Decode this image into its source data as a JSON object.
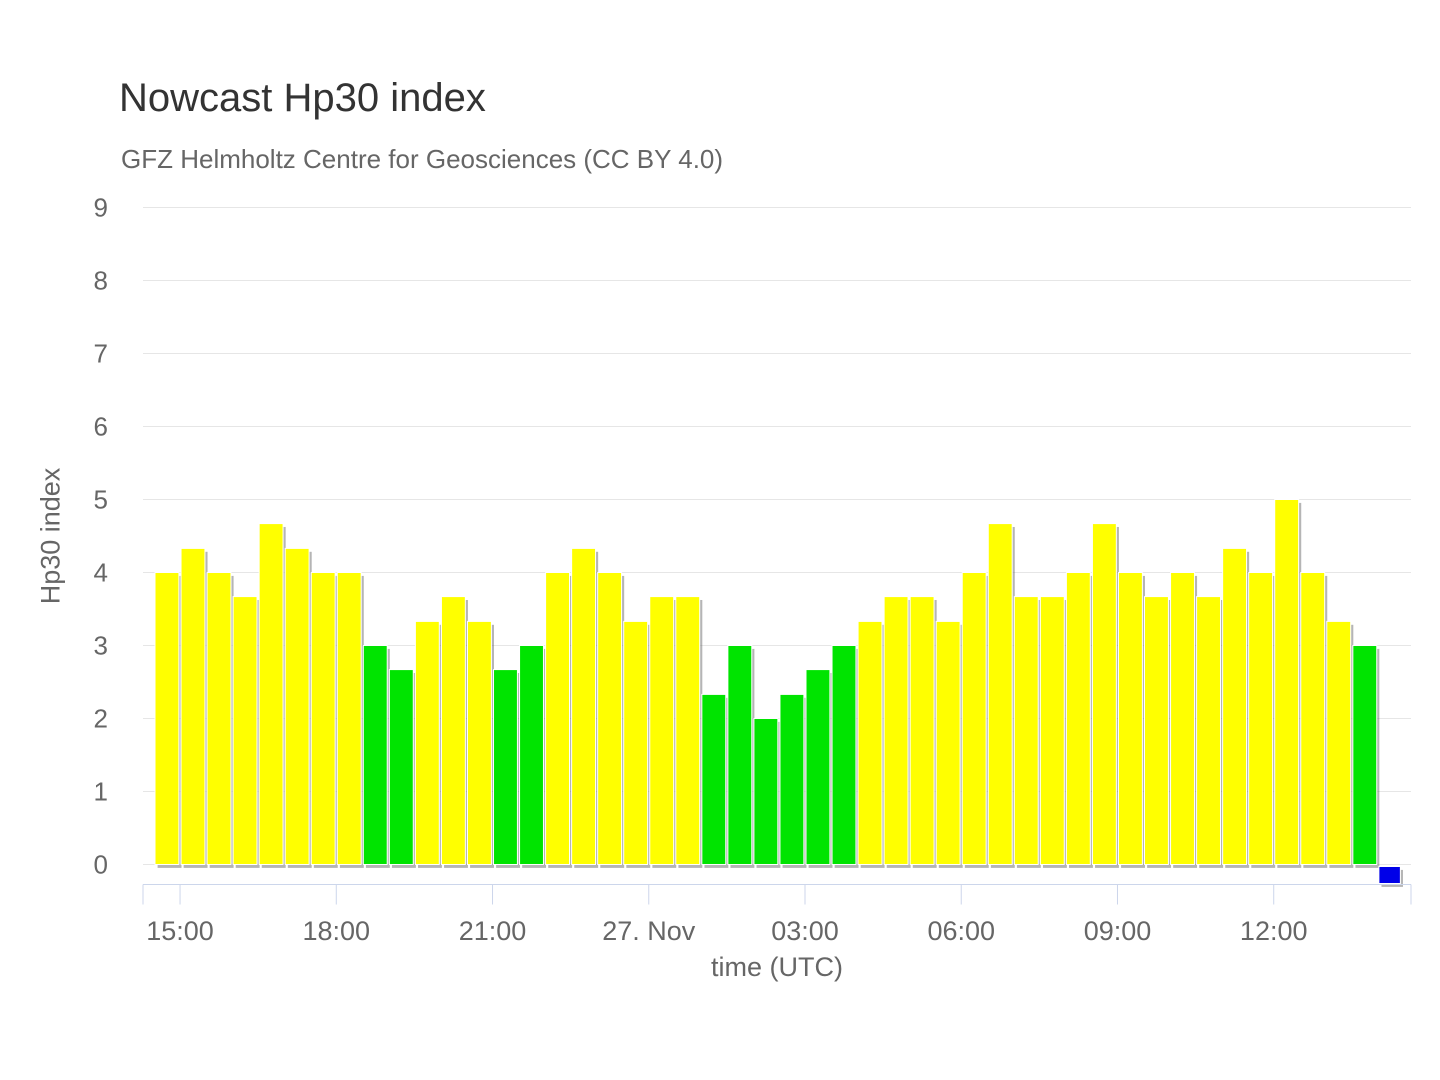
{
  "page": {
    "background": "#ffffff"
  },
  "chart_data": {
    "type": "bar",
    "title": "Nowcast Hp30 index",
    "subtitle": "GFZ Helmholtz Centre for Geosciences (CC BY 4.0)",
    "xlabel": "time (UTC)",
    "ylabel": "Hp30 index",
    "ylim": [
      0,
      9
    ],
    "y_ticks": [
      0,
      1,
      2,
      3,
      4,
      5,
      6,
      7,
      8,
      9
    ],
    "grid": true,
    "legend": false,
    "interval_minutes": 30,
    "x_ticks": [
      {
        "label": "15:00",
        "boundary_index": 1
      },
      {
        "label": "18:00",
        "boundary_index": 7
      },
      {
        "label": "21:00",
        "boundary_index": 13
      },
      {
        "label": "27. Nov",
        "boundary_index": 19
      },
      {
        "label": "03:00",
        "boundary_index": 25
      },
      {
        "label": "06:00",
        "boundary_index": 31
      },
      {
        "label": "09:00",
        "boundary_index": 37
      },
      {
        "label": "12:00",
        "boundary_index": 43
      }
    ],
    "colors": {
      "yellow": "#ffff00",
      "green": "#00e400",
      "pending_blue": "#0000e8"
    },
    "style_colors": {
      "title_text": "#333333",
      "label_text": "#666666",
      "gridline": "#e6e6e6",
      "axis_line": "#ccd6eb",
      "bar_border": "#ffffff",
      "bar_shadow": "rgba(90,90,90,0.45)"
    },
    "points": [
      {
        "time": "14:30",
        "value": 4.0,
        "color": "yellow"
      },
      {
        "time": "15:00",
        "value": 4.33,
        "color": "yellow"
      },
      {
        "time": "15:30",
        "value": 4.0,
        "color": "yellow"
      },
      {
        "time": "16:00",
        "value": 3.67,
        "color": "yellow"
      },
      {
        "time": "16:30",
        "value": 4.67,
        "color": "yellow"
      },
      {
        "time": "17:00",
        "value": 4.33,
        "color": "yellow"
      },
      {
        "time": "17:30",
        "value": 4.0,
        "color": "yellow"
      },
      {
        "time": "18:00",
        "value": 4.0,
        "color": "yellow"
      },
      {
        "time": "18:30",
        "value": 3.0,
        "color": "green"
      },
      {
        "time": "19:00",
        "value": 2.67,
        "color": "green"
      },
      {
        "time": "19:30",
        "value": 3.33,
        "color": "yellow"
      },
      {
        "time": "20:00",
        "value": 3.67,
        "color": "yellow"
      },
      {
        "time": "20:30",
        "value": 3.33,
        "color": "yellow"
      },
      {
        "time": "21:00",
        "value": 2.67,
        "color": "green"
      },
      {
        "time": "21:30",
        "value": 3.0,
        "color": "green"
      },
      {
        "time": "22:00",
        "value": 4.0,
        "color": "yellow"
      },
      {
        "time": "22:30",
        "value": 4.33,
        "color": "yellow"
      },
      {
        "time": "23:00",
        "value": 4.0,
        "color": "yellow"
      },
      {
        "time": "23:30",
        "value": 3.33,
        "color": "yellow"
      },
      {
        "time": "00:00",
        "value": 3.67,
        "color": "yellow"
      },
      {
        "time": "00:30",
        "value": 3.67,
        "color": "yellow"
      },
      {
        "time": "01:00",
        "value": 2.33,
        "color": "green"
      },
      {
        "time": "01:30",
        "value": 3.0,
        "color": "green"
      },
      {
        "time": "02:00",
        "value": 2.0,
        "color": "green"
      },
      {
        "time": "02:30",
        "value": 2.33,
        "color": "green"
      },
      {
        "time": "03:00",
        "value": 2.67,
        "color": "green"
      },
      {
        "time": "03:30",
        "value": 3.0,
        "color": "green"
      },
      {
        "time": "04:00",
        "value": 3.33,
        "color": "yellow"
      },
      {
        "time": "04:30",
        "value": 3.67,
        "color": "yellow"
      },
      {
        "time": "05:00",
        "value": 3.67,
        "color": "yellow"
      },
      {
        "time": "05:30",
        "value": 3.33,
        "color": "yellow"
      },
      {
        "time": "06:00",
        "value": 4.0,
        "color": "yellow"
      },
      {
        "time": "06:30",
        "value": 4.67,
        "color": "yellow"
      },
      {
        "time": "07:00",
        "value": 3.67,
        "color": "yellow"
      },
      {
        "time": "07:30",
        "value": 3.67,
        "color": "yellow"
      },
      {
        "time": "08:00",
        "value": 4.0,
        "color": "yellow"
      },
      {
        "time": "08:30",
        "value": 4.67,
        "color": "yellow"
      },
      {
        "time": "09:00",
        "value": 4.0,
        "color": "yellow"
      },
      {
        "time": "09:30",
        "value": 3.67,
        "color": "yellow"
      },
      {
        "time": "10:00",
        "value": 4.0,
        "color": "yellow"
      },
      {
        "time": "10:30",
        "value": 3.67,
        "color": "yellow"
      },
      {
        "time": "11:00",
        "value": 4.33,
        "color": "yellow"
      },
      {
        "time": "11:30",
        "value": 4.0,
        "color": "yellow"
      },
      {
        "time": "12:00",
        "value": 5.0,
        "color": "yellow"
      },
      {
        "time": "12:30",
        "value": 4.0,
        "color": "yellow"
      },
      {
        "time": "13:00",
        "value": 3.33,
        "color": "yellow"
      },
      {
        "time": "13:30",
        "value": 3.0,
        "color": "green"
      },
      {
        "time": "14:00",
        "value": null,
        "color": "pending_blue",
        "pending": true
      }
    ]
  }
}
